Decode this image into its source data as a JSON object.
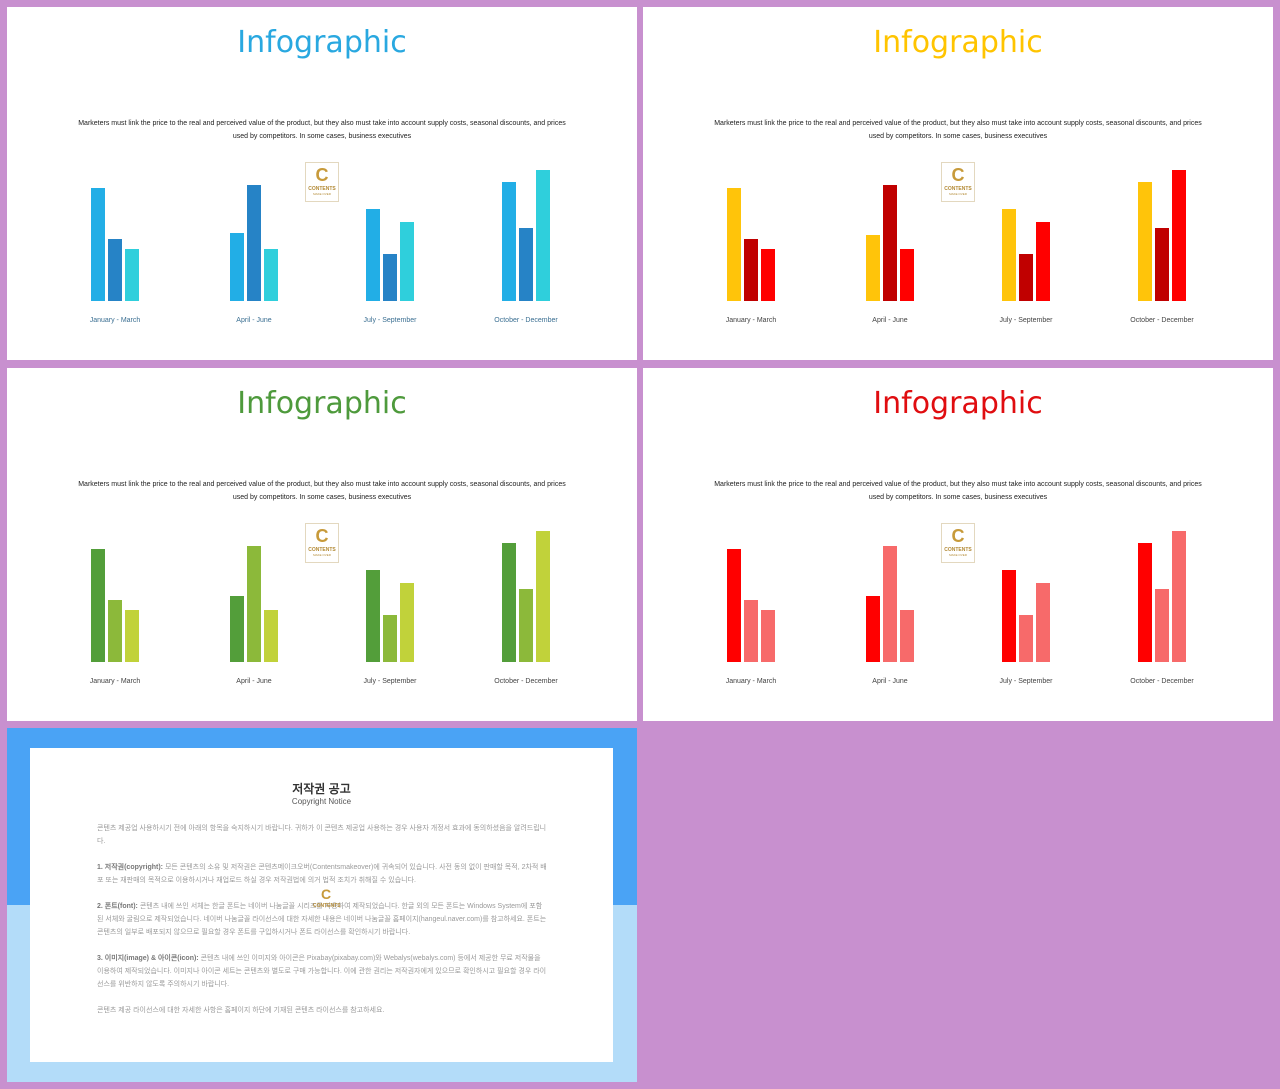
{
  "slides": [
    {
      "title": "Infographic",
      "title_color": "#29a8e0",
      "description": "Marketers must link the price to the real and perceived value of the product, but they also must take into account supply costs, seasonal discounts, and prices used by competitors. In some cases, business executives",
      "label_color": "#3b6f92",
      "series_colors": [
        "#22aee6",
        "#2683c6",
        "#2fcfdc"
      ]
    },
    {
      "title": "Infographic",
      "title_color": "#ffc400",
      "description": "Marketers must link the price to the real and perceived value of the product, but they also must take into account supply costs, seasonal discounts, and prices used by competitors. In some cases, business executives",
      "label_color": "#444444",
      "series_colors": [
        "#ffc40a",
        "#c00000",
        "#ff0000"
      ]
    },
    {
      "title": "Infographic",
      "title_color": "#4e9a3c",
      "description": "Marketers must link the price to the real and perceived value of the product, but they also must take into account supply costs, seasonal discounts, and prices used by competitors. In some cases, business executives",
      "label_color": "#444444",
      "series_colors": [
        "#539e3a",
        "#8cb93a",
        "#c1d23a"
      ]
    },
    {
      "title": "Infographic",
      "title_color": "#e00d10",
      "description": "Marketers must link the price to the real and perceived value of the product, but they also must take into account supply costs, seasonal discounts, and prices used by competitors. In some cases, business executives",
      "label_color": "#444444",
      "series_colors": [
        "#ff0000",
        "#f76a6a",
        "#f76a6a"
      ]
    }
  ],
  "chart_data": [
    {
      "type": "bar",
      "categories": [
        "January - March",
        "April - June",
        "July - September",
        "October - December"
      ],
      "series": [
        {
          "values": [
            113,
            68,
            92,
            119
          ]
        },
        {
          "values": [
            62,
            116,
            47,
            73
          ]
        },
        {
          "values": [
            52,
            52,
            79,
            131
          ]
        }
      ]
    },
    {
      "type": "bar",
      "categories": [
        "January - March",
        "April - June",
        "July - September",
        "October - December"
      ],
      "series": [
        {
          "values": [
            113,
            66,
            92,
            119
          ]
        },
        {
          "values": [
            62,
            116,
            47,
            73
          ]
        },
        {
          "values": [
            52,
            52,
            79,
            131
          ]
        }
      ]
    },
    {
      "type": "bar",
      "categories": [
        "January - March",
        "April - June",
        "July - September",
        "October - December"
      ],
      "series": [
        {
          "values": [
            113,
            66,
            92,
            119
          ]
        },
        {
          "values": [
            62,
            116,
            47,
            73
          ]
        },
        {
          "values": [
            52,
            52,
            79,
            131
          ]
        }
      ]
    },
    {
      "type": "bar",
      "categories": [
        "January - March",
        "April - June",
        "July - September",
        "October - December"
      ],
      "series": [
        {
          "values": [
            113,
            66,
            92,
            119
          ]
        },
        {
          "values": [
            62,
            116,
            47,
            73
          ]
        },
        {
          "values": [
            52,
            52,
            79,
            131
          ]
        }
      ]
    }
  ],
  "logo": {
    "letter": "C",
    "line1": "CONTENTS",
    "line2": "MAKE OVER"
  },
  "notice": {
    "title": "저작권 공고",
    "subtitle": "Copyright Notice",
    "intro": "콘텐츠 제공업 사용하시기 전에 아래의 항목을 숙지하시기 바랍니다. 귀하가 이 콘텐츠 제공업 사용하는 경우 사용자 개정서 효과에 동의하셨음을 알려드립니다.",
    "items": [
      {
        "heading": "1. 저작권(copyright):",
        "text": "모든 콘텐츠의 소유 및 저작권은 콘텐츠메이크오버(Contentsmakeover)에 귀속되어 있습니다. 사전 동의 없이 판매할 목적, 2차적 배포 또는 재판매의 목적으로 이용하시거나 재업로드 하실 경우 저작권법에 의거 법적 조치가 취해질 수 있습니다."
      },
      {
        "heading": "2. 폰트(font):",
        "text": "콘텐츠 내에 쓰인 서체는 한글 폰트는 네이버 나눔글꼴 시리즈를 사용하여 제작되었습니다. 한글 외의 모든 폰트는 Windows System에 포함된 서체와 굴림으로 제작되었습니다. 네이버 나눔글꼴 라이선스에 대한 자세한 내용은 네이버 나눔글꼴 홈페이지(hangeul.naver.com)를 참고하세요. 폰트는 콘텐츠의 일부로 배포되지 않으므로 필요할 경우 폰트를 구입하시거나 폰트 라이선스를 확인하시기 바랍니다."
      },
      {
        "heading": "3. 이미지(image) & 아이콘(icon):",
        "text": "콘텐츠 내에 쓰인 이미지와 아이콘은 Pixabay(pixabay.com)와 Webalys(webalys.com) 등에서 제공한 무료 저작물을 이용하여 제작되었습니다. 이미지나 아이콘 세트는 콘텐츠와 별도로 구매 가능합니다. 이에 관한 권리는 저작권자에게 있으므로 확인하시고 필요할 경우 라이선스를 위반하지 않도록 주의하시기 바랍니다."
      }
    ],
    "outro": "콘텐츠 제공 라이선스에 대한 자세한 사항은 홈페이지 하단에 기재된 콘텐츠 라이선스를 참고하세요."
  }
}
